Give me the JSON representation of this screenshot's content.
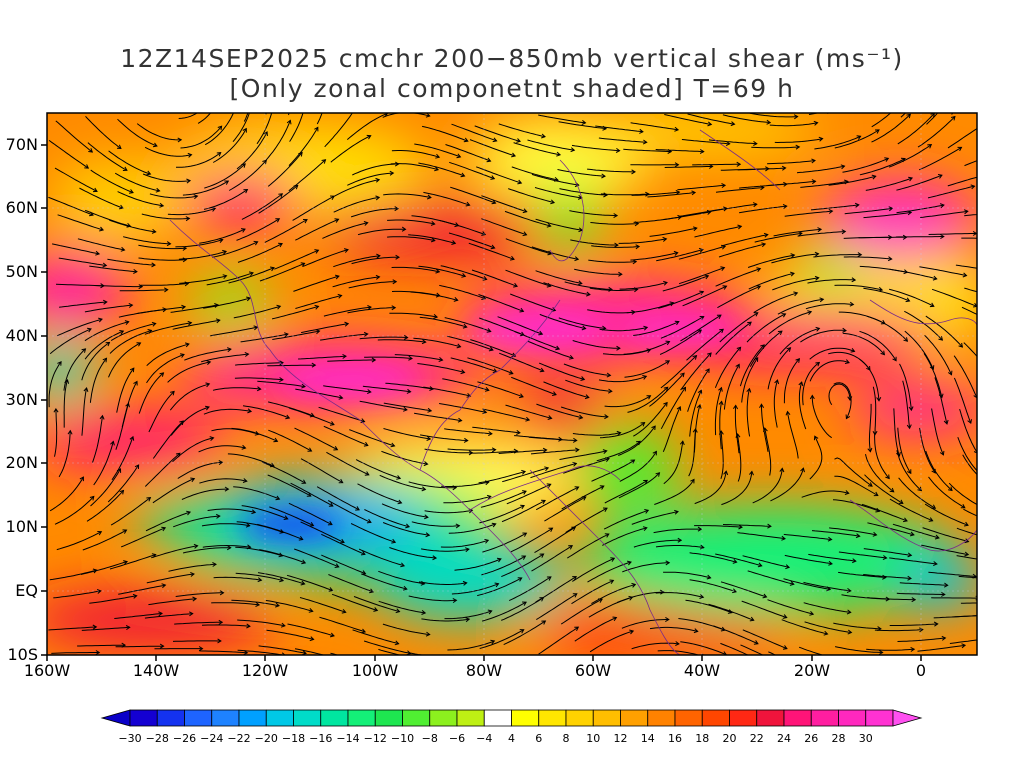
{
  "title_line1": "12Z14SEP2025 cmchr 200−850mb vertical shear (ms⁻¹)",
  "title_line2": "[Only zonal componetnt shaded] T=69 h",
  "lat_ticks": [
    "70N",
    "60N",
    "50N",
    "40N",
    "30N",
    "20N",
    "10N",
    "EQ",
    "10S"
  ],
  "lon_ticks": [
    "160W",
    "140W",
    "120W",
    "100W",
    "80W",
    "60W",
    "40W",
    "20W",
    "0"
  ],
  "colorbar": {
    "labels": [
      "−30",
      "−28",
      "−26",
      "−24",
      "−22",
      "−20",
      "−18",
      "−16",
      "−14",
      "−12",
      "−10",
      "−8",
      "−6",
      "−4",
      "4",
      "6",
      "8",
      "10",
      "12",
      "14",
      "16",
      "18",
      "20",
      "22",
      "24",
      "26",
      "28",
      "30"
    ],
    "colors": [
      "#1400d2",
      "#1432f0",
      "#1e64ff",
      "#1e82ff",
      "#00a0ff",
      "#00c8e6",
      "#00dcc8",
      "#00e6a0",
      "#14f078",
      "#1ee650",
      "#50ef32",
      "#8cf01e",
      "#bef014",
      "#ffffff",
      "#ffff00",
      "#ffe600",
      "#ffd200",
      "#ffbe00",
      "#ffa000",
      "#ff8200",
      "#ff6400",
      "#ff4600",
      "#ff2814",
      "#f0143c",
      "#ff1478",
      "#ff1ea0",
      "#ff28be",
      "#ff32d2"
    ],
    "under_color": "#0a00c8",
    "over_color": "#ff50f0"
  }
}
